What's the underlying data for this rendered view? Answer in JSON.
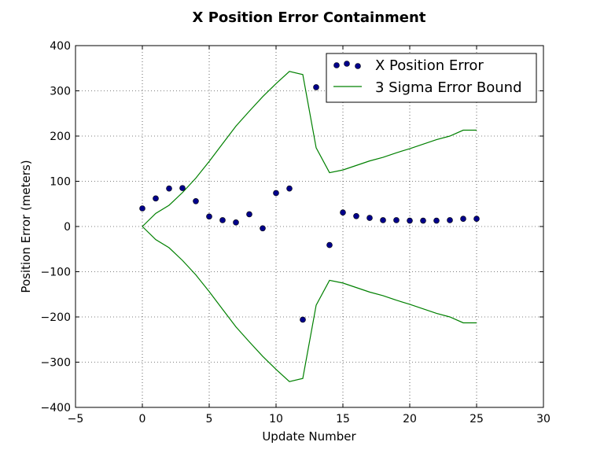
{
  "chart_data": {
    "type": "scatter",
    "title": "X Position Error Containment",
    "xlabel": "Update Number",
    "ylabel": "Position Error (meters)",
    "xlim": [
      -5,
      30
    ],
    "ylim": [
      -400,
      400
    ],
    "xticks": [
      -5,
      0,
      5,
      10,
      15,
      20,
      25,
      30
    ],
    "yticks": [
      -400,
      -300,
      -200,
      -100,
      0,
      100,
      200,
      300,
      400
    ],
    "xtick_labels": [
      "−5",
      "0",
      "5",
      "10",
      "15",
      "20",
      "25",
      "30"
    ],
    "ytick_labels": [
      "−400",
      "−300",
      "−200",
      "−100",
      "0",
      "100",
      "200",
      "300",
      "400"
    ],
    "grid": true,
    "legend_position": "top-right",
    "series": [
      {
        "name": "X Position Error",
        "kind": "scatter",
        "color": "#00008b",
        "x": [
          0,
          1,
          2,
          3,
          4,
          5,
          6,
          7,
          8,
          9,
          10,
          11,
          12,
          13,
          14,
          15,
          16,
          17,
          18,
          19,
          20,
          21,
          22,
          23,
          24,
          25
        ],
        "y": [
          40,
          62,
          84,
          85,
          56,
          22,
          14,
          9,
          27,
          -4,
          74,
          84,
          -206,
          308,
          -41,
          31,
          23,
          19,
          14,
          14,
          13,
          13,
          13,
          14,
          17,
          17
        ]
      },
      {
        "name": "3 Sigma Error Bound",
        "kind": "line",
        "color": "#008000",
        "x": [
          0,
          1,
          2,
          3,
          4,
          5,
          6,
          7,
          8,
          9,
          10,
          11,
          12,
          13,
          14,
          15,
          16,
          17,
          18,
          19,
          20,
          21,
          22,
          23,
          24,
          25
        ],
        "y": [
          0,
          29,
          47,
          75,
          107,
          144,
          183,
          222,
          255,
          287,
          316,
          343,
          336,
          174,
          119,
          125,
          135,
          145,
          153,
          163,
          172,
          182,
          192,
          200,
          213,
          213
        ]
      }
    ]
  }
}
